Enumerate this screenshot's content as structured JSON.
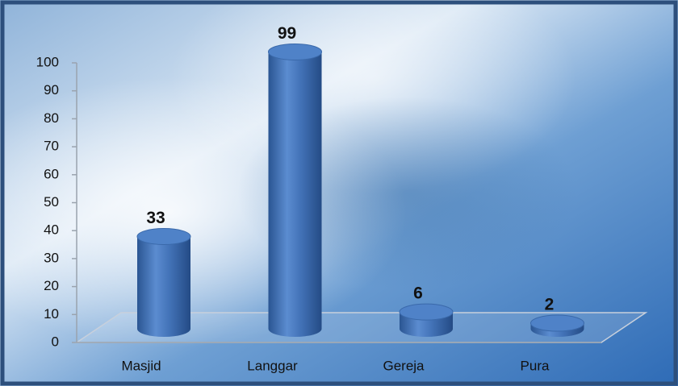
{
  "chart_data": {
    "type": "bar",
    "style": "3d-cylinder",
    "categories": [
      "Masjid",
      "Langgar",
      "Gereja",
      "Pura"
    ],
    "values": [
      33,
      99,
      6,
      2
    ],
    "color": "#3f6fb5",
    "ylim": [
      0,
      100
    ],
    "yticks": [
      0,
      10,
      20,
      30,
      40,
      50,
      60,
      70,
      80,
      90,
      100
    ],
    "grid": false,
    "data_labels": true
  }
}
